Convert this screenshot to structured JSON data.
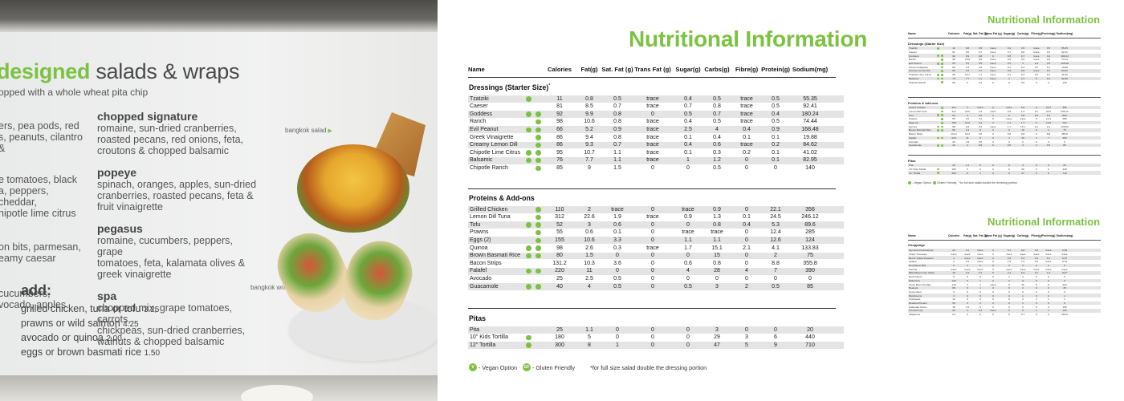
{
  "board": {
    "title_accent": "designed",
    "title_rest": "salads & wraps",
    "subtitle": "opped with a whole wheat pita chip",
    "left_items": [
      {
        "desc": "ers, pea pods, red\ns, peanuts, cilantro &"
      },
      {
        "desc": "e tomatoes, black\na, peppers, cheddar,\nhipotle lime citrus"
      },
      {
        "desc": "on bits, parmesan,\neamy caesar"
      },
      {
        "desc": "cucumbers,\nvocado, apples"
      }
    ],
    "mid_items": [
      {
        "name": "chopped signature",
        "desc": "romaine, sun-dried cranberries,\nroasted pecans, red onions, feta,\ncroutons & chopped balsamic"
      },
      {
        "name": "popeye",
        "desc": "spinach, oranges, apples, sun-dried\ncranberries, roasted pecans, feta &\nfruit vinaigrette"
      },
      {
        "name": "pegasus",
        "desc": "romaine, cucumbers, peppers, grape\ntomatoes, feta, kalamata olives &\ngreek vinaigrette"
      },
      {
        "name": "spa",
        "desc": "chopped mix, grape tomatoes, carrots,\nchickpeas, sun-dried cranberries,\nwalnuts & chopped balsamic"
      }
    ],
    "add_title": "add:",
    "add_lines": [
      {
        "text": "grilled chicken, tuna or tofu",
        "price": "3.25"
      },
      {
        "text": "prawns or wild salmon",
        "price": "4.25"
      },
      {
        "text": "avocado or quinoa",
        "price": "2.00"
      },
      {
        "text": "eggs or brown basmati rice",
        "price": "1.50"
      }
    ],
    "tag_salad": "bangkok salad",
    "tag_wrap": "bangkok wrap"
  },
  "nutrition": {
    "title": "Nutritional Information",
    "columns": [
      "Name",
      "Calories",
      "Fat(g)",
      "Sat. Fat (g)",
      "Trans Fat (g)",
      "Sugar(g)",
      "Carbs(g)",
      "Fibre(g)",
      "Protein(g)",
      "Sodium(mg)"
    ],
    "sections": [
      {
        "title": "Dressings (Starter Size)",
        "title_mark": "*",
        "rows": [
          {
            "name": "Tzatziki",
            "v": true,
            "gf": false,
            "vals": [
              "11",
              "0.8",
              "0.5",
              "trace",
              "0.4",
              "0.5",
              "trace",
              "0.5",
              "55.35"
            ]
          },
          {
            "name": "Caeser",
            "v": false,
            "gf": false,
            "vals": [
              "81",
              "8.5",
              "0.7",
              "trace",
              "0.7",
              "0.8",
              "trace",
              "0.5",
              "92.41"
            ]
          },
          {
            "name": "Goddess",
            "v": true,
            "gf": true,
            "vals": [
              "92",
              "9.9",
              "0.8",
              "0",
              "0.5",
              "0.7",
              "trace",
              "0.4",
              "180.24"
            ]
          },
          {
            "name": "Ranch",
            "v": false,
            "gf": true,
            "vals": [
              "98",
              "10.6",
              "0.8",
              "trace",
              "0.4",
              "0.5",
              "trace",
              "0.5",
              "74.44"
            ]
          },
          {
            "name": "Evil Peanut",
            "v": true,
            "gf": true,
            "vals": [
              "66",
              "5.2",
              "0.9",
              "trace",
              "2.5",
              "4",
              "0.4",
              "0.9",
              "168.48"
            ]
          },
          {
            "name": "Greek Vinaigrette",
            "v": false,
            "gf": true,
            "vals": [
              "86",
              "9.4",
              "0.8",
              "trace",
              "0.1",
              "0.4",
              "0.1",
              "0.1",
              "19.88"
            ]
          },
          {
            "name": "Creamy Lemon Dill",
            "v": false,
            "gf": true,
            "vals": [
              "86",
              "9.3",
              "0.7",
              "trace",
              "0.4",
              "0.6",
              "trace",
              "0.2",
              "84.62"
            ]
          },
          {
            "name": "Chipotle Lime Citrus",
            "v": true,
            "gf": true,
            "vals": [
              "95",
              "10.7",
              "1.1",
              "trace",
              "0.1",
              "0.3",
              "0.2",
              "0.1",
              "41.02"
            ]
          },
          {
            "name": "Balsamic",
            "v": true,
            "gf": true,
            "vals": [
              "76",
              "7.7",
              "1.1",
              "trace",
              "1",
              "1.2",
              "0",
              "0.1",
              "82.95"
            ]
          },
          {
            "name": "Chipotle Ranch",
            "v": false,
            "gf": true,
            "vals": [
              "85",
              "9",
              "1.5",
              "0",
              "0",
              "0.5",
              "0",
              "0",
              "140"
            ]
          }
        ]
      },
      {
        "title": "Proteins & Add-ons",
        "title_mark": "",
        "rows": [
          {
            "name": "Grilled Chicken",
            "v": false,
            "gf": true,
            "vals": [
              "110",
              "2",
              "trace",
              "0",
              "trace",
              "0.9",
              "0",
              "22.1",
              "356"
            ]
          },
          {
            "name": "Lemon Dill Tuna",
            "v": false,
            "gf": true,
            "vals": [
              "312",
              "22.6",
              "1.9",
              "trace",
              "0.9",
              "1.3",
              "0.1",
              "24.5",
              "246.12"
            ]
          },
          {
            "name": "Tofu",
            "v": true,
            "gf": true,
            "vals": [
              "52",
              "3",
              "0.6",
              "0",
              "0",
              "0.8",
              "0.4",
              "5.3",
              "89.6"
            ]
          },
          {
            "name": "Prawns",
            "v": false,
            "gf": true,
            "vals": [
              "55",
              "0.6",
              "0.1",
              "0",
              "trace",
              "trace",
              "0",
              "12.4",
              "285"
            ]
          },
          {
            "name": "Eggs (2)",
            "v": false,
            "gf": true,
            "vals": [
              "155",
              "10.6",
              "3.3",
              "0",
              "1.1",
              "1.1",
              "0",
              "12.6",
              "124"
            ]
          },
          {
            "name": "Quinoa",
            "v": true,
            "gf": true,
            "vals": [
              "98",
              "2.6",
              "0.3",
              "trace",
              "1.7",
              "15.1",
              "2.1",
              "4.1",
              "133.83"
            ]
          },
          {
            "name": "Brown Basmati Rice",
            "v": true,
            "gf": true,
            "vals": [
              "80",
              "1.5",
              "0",
              "0",
              "0",
              "15",
              "0",
              "2",
              "75"
            ]
          },
          {
            "name": "Bacon Strips",
            "v": false,
            "gf": false,
            "vals": [
              "131.2",
              "10.3",
              "3.6",
              "0",
              "0.6",
              "0.8",
              "0",
              "8.8",
              "355.8"
            ]
          },
          {
            "name": "Falafel",
            "v": true,
            "gf": true,
            "vals": [
              "220",
              "11",
              "0",
              "0",
              "4",
              "28",
              "4",
              "7",
              "390"
            ]
          },
          {
            "name": "Avocado",
            "v": false,
            "gf": false,
            "vals": [
              "25",
              "2.5",
              "0.5",
              "0",
              "0",
              "0",
              "0",
              "0",
              "0"
            ]
          },
          {
            "name": "Guacamole",
            "v": true,
            "gf": true,
            "vals": [
              "40",
              "4",
              "0.5",
              "0",
              "0.5",
              "3",
              "2",
              "0.5",
              "85"
            ]
          }
        ]
      },
      {
        "title": "Pitas",
        "title_mark": "",
        "rows": [
          {
            "name": "Pita",
            "v": false,
            "gf": false,
            "vals": [
              "25",
              "1.1",
              "0",
              "0",
              "0",
              "3",
              "0",
              "0",
              "20"
            ]
          },
          {
            "name": "10\" Kids Tortilla",
            "v": true,
            "gf": false,
            "vals": [
              "180",
              "5",
              "0",
              "0",
              "0",
              "29",
              "3",
              "6",
              "440"
            ]
          },
          {
            "name": "12\" Tortilla",
            "v": true,
            "gf": false,
            "vals": [
              "300",
              "8",
              "1",
              "0",
              "0",
              "47",
              "5",
              "9",
              "710"
            ]
          }
        ]
      }
    ],
    "legend": {
      "vegan_badge": "V",
      "vegan_label": "- Vegan Option",
      "gf_badge": "GF",
      "gf_label": "- Gluten Friendly",
      "note": "*for full size salad double the dressing portion"
    }
  },
  "mini_pages": {
    "title": "Nutritional Information",
    "vegan_label": "- Vegan Option",
    "gf_label": "Gluten Friendly",
    "note": "*for full size salad double the dressing portion",
    "choppings_title": "Choppings",
    "choppings_rows": [
      {
        "name": "Sun-dried Cranberries",
        "vals": [
          "22",
          "0.1",
          "trace",
          "0",
          "5.1",
          "5.8",
          "0.4",
          "trace",
          "0.35"
        ]
      },
      {
        "name": "Grape Tomatoes",
        "vals": [
          "trace",
          "trace",
          "trace",
          "0",
          "trace",
          "trace",
          "trace",
          "trace",
          "trace"
        ]
      },
      {
        "name": "Red & Yellow Peppers",
        "vals": [
          "1",
          "trace",
          "trace",
          "0",
          "0.3",
          "0.3",
          "0.2",
          "0.1",
          "0.07"
        ]
      },
      {
        "name": "Apples",
        "vals": [
          "1",
          "0.1",
          "trace",
          "0",
          "1.5",
          "1.5",
          "0.4",
          "trace",
          "0.14"
        ]
      },
      {
        "name": "Red Bacon Bits",
        "vals": [
          "9",
          "0",
          "0",
          "0",
          "0",
          "0",
          "0",
          "0",
          "0"
        ]
      },
      {
        "name": "Carrots",
        "vals": [
          "trace",
          "trace",
          "trace",
          "0",
          "trace",
          "trace",
          "trace",
          "trace",
          "trace"
        ]
      },
      {
        "name": "Black Bean Corn Salsa",
        "vals": [
          "18",
          "0.4",
          "0.1",
          "0",
          "2.1",
          "5.3",
          "2.1",
          "1.4",
          "8.07"
        ]
      },
      {
        "name": "Red Onions",
        "vals": [
          "5",
          "0",
          "0",
          "0",
          "1",
          "1",
          "0",
          "0",
          "0"
        ]
      },
      {
        "name": "Edamame",
        "vals": [
          "120",
          "5",
          "1",
          "0",
          "2",
          "8",
          "5",
          "9",
          "0"
        ]
      },
      {
        "name": "Chow Mein Noodles",
        "vals": [
          "140",
          "3",
          "1",
          "trace",
          "0",
          "26",
          "0",
          "5",
          "210"
        ]
      },
      {
        "name": "Peanuts",
        "vals": [
          "65",
          "6",
          "1",
          "0",
          "0",
          "2",
          "0",
          "3",
          "45"
        ]
      },
      {
        "name": "Cucumbers",
        "vals": [
          "0",
          "0",
          "0",
          "0",
          "0",
          "0",
          "0",
          "0",
          "0"
        ]
      },
      {
        "name": "Mushrooms",
        "vals": [
          "3",
          "0",
          "0",
          "0",
          "0",
          "1",
          "0",
          "0",
          "1"
        ]
      },
      {
        "name": "Chickpeas",
        "vals": [
          "12",
          "0",
          "0",
          "0",
          "0",
          "2",
          "1",
          "1",
          "1"
        ]
      },
      {
        "name": "Roasted Pecans",
        "vals": [
          "50",
          "5",
          "0",
          "0",
          "0",
          "1",
          "0",
          "0",
          "0"
        ]
      },
      {
        "name": "Kalamata Olives",
        "vals": [
          "15",
          "1.5",
          "0",
          "0",
          "0",
          "0",
          "0",
          "0",
          "105"
        ]
      },
      {
        "name": "Croutons (6)",
        "vals": [
          "60",
          "2",
          "0.3",
          "trace",
          "0",
          "9",
          "0",
          "1",
          "135"
        ]
      },
      {
        "name": "Jalapenos",
        "vals": [
          "3.4",
          "0",
          "0",
          "0",
          "0",
          "0.7",
          "0",
          "0",
          "254.6"
        ]
      }
    ]
  }
}
